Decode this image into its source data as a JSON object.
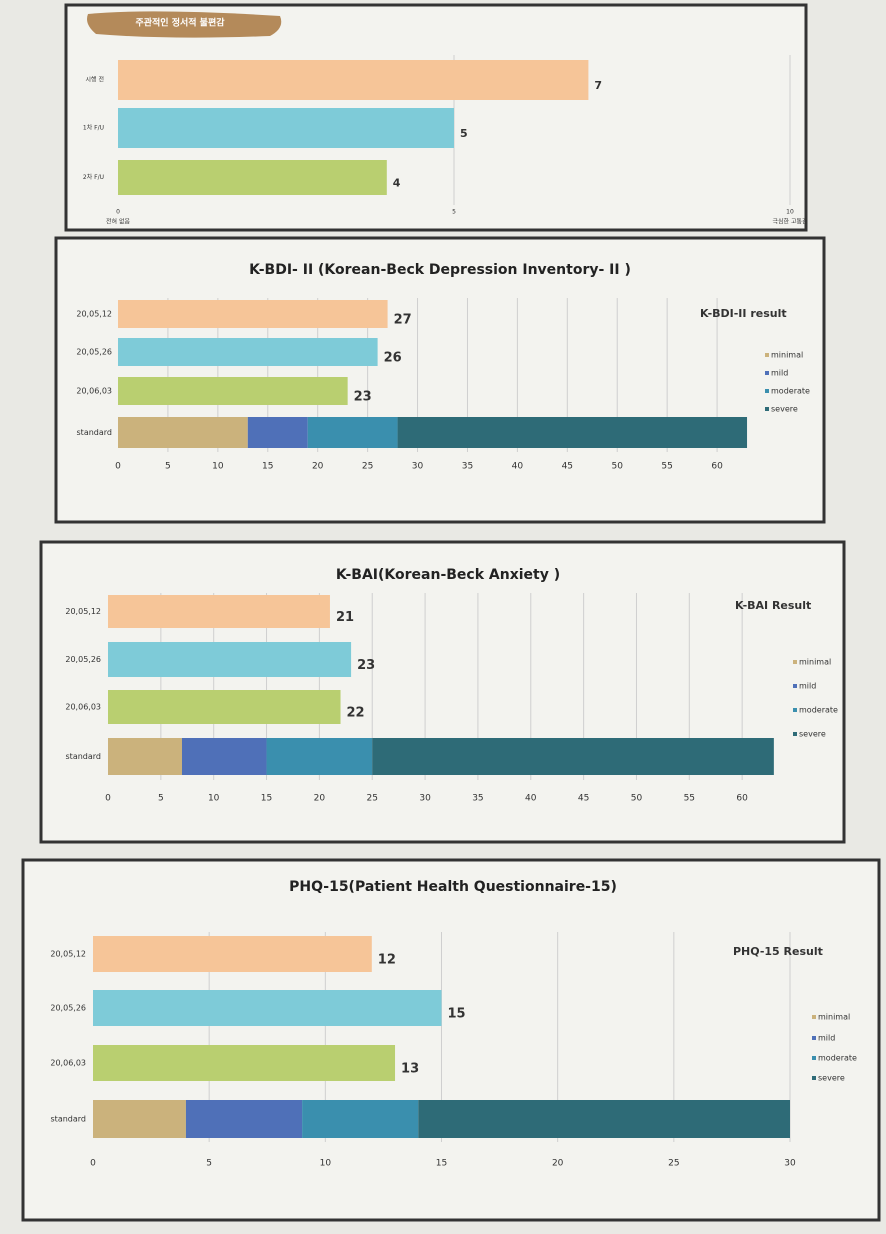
{
  "chart_data": [
    {
      "type": "bar",
      "orientation": "horizontal",
      "title": "주관적인 정서적 불편감",
      "categories": [
        "시행 전",
        "1차 F/U",
        "2차 F/U"
      ],
      "values": [
        7,
        5,
        4
      ],
      "colors": [
        "#f6c598",
        "#7ecbd8",
        "#b9cf70"
      ],
      "xlim": [
        0,
        10
      ],
      "xticks": [
        0,
        5,
        10
      ],
      "xlabel_left": "전혀 없음",
      "xlabel_right": "극심한 고통감",
      "grid": true
    },
    {
      "type": "bar",
      "orientation": "horizontal",
      "title": "K-BDI- II (Korean-Beck Depression Inventory- II )",
      "legend_title": "K-BDI-II  result",
      "categories": [
        "20,05,12",
        "20,05,26",
        "20,06,03"
      ],
      "values": [
        27,
        26,
        23
      ],
      "colors": [
        "#f6c598",
        "#7ecbd8",
        "#b9cf70"
      ],
      "standard_label": "standard",
      "segments": [
        {
          "name": "minimal",
          "color": "#cbb27c",
          "value": 13
        },
        {
          "name": "mild",
          "color": "#4f70b8",
          "value": 6
        },
        {
          "name": "moderate",
          "color": "#3a8fae",
          "value": 9
        },
        {
          "name": "severe",
          "color": "#2e6b77",
          "value": 35
        }
      ],
      "xlim": [
        0,
        65
      ],
      "xticks": [
        0,
        5,
        10,
        15,
        20,
        25,
        30,
        35,
        40,
        45,
        50,
        55,
        60
      ],
      "grid": true
    },
    {
      "type": "bar",
      "orientation": "horizontal",
      "title": "K-BAI(Korean-Beck Anxiety )",
      "legend_title": "K-BAI  Result",
      "categories": [
        "20,05,12",
        "20,05,26",
        "20,06,03"
      ],
      "values": [
        21,
        23,
        22
      ],
      "colors": [
        "#f6c598",
        "#7ecbd8",
        "#b9cf70"
      ],
      "standard_label": "standard",
      "segments": [
        {
          "name": "minimal",
          "color": "#cbb27c",
          "value": 7
        },
        {
          "name": "mild",
          "color": "#4f70b8",
          "value": 8
        },
        {
          "name": "moderate",
          "color": "#3a8fae",
          "value": 10
        },
        {
          "name": "severe",
          "color": "#2e6b77",
          "value": 38
        }
      ],
      "xlim": [
        0,
        65
      ],
      "xticks": [
        0,
        5,
        10,
        15,
        20,
        25,
        30,
        35,
        40,
        45,
        50,
        55,
        60
      ],
      "grid": true
    },
    {
      "type": "bar",
      "orientation": "horizontal",
      "title": "PHQ-15(Patient Health Questionnaire-15)",
      "legend_title": "PHQ-15 Result",
      "categories": [
        "20,05,12",
        "20,05,26",
        "20,06,03"
      ],
      "values": [
        12,
        15,
        13
      ],
      "colors": [
        "#f6c598",
        "#7ecbd8",
        "#b9cf70"
      ],
      "standard_label": "standard",
      "segments": [
        {
          "name": "minimal",
          "color": "#cbb27c",
          "value": 4
        },
        {
          "name": "mild",
          "color": "#4f70b8",
          "value": 5
        },
        {
          "name": "moderate",
          "color": "#3a8fae",
          "value": 5
        },
        {
          "name": "severe",
          "color": "#2e6b77",
          "value": 16
        }
      ],
      "xlim": [
        0,
        30
      ],
      "xticks": [
        0,
        5,
        10,
        15,
        20,
        25,
        30
      ],
      "grid": true
    }
  ]
}
